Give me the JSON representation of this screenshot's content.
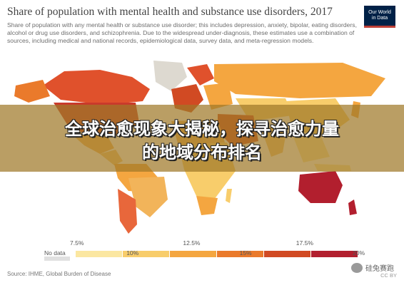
{
  "header": {
    "title": "Share of population with mental health and substance use disorders, 2017",
    "subtitle": "Share of population with any mental health or substance use disorder; this includes depression, anxiety, bipolar, eating disorders, alcohol or drug use disorders, and schizophrenia. Due to the widespread under-diagnosis, these estimates use a combination of sources, including medical and national records, epidemiological data, survey data, and meta-regression models."
  },
  "logo": {
    "line1": "Our World",
    "line2": "in Data"
  },
  "banner": {
    "line1": "全球治愈现象大揭秘，探寻治愈力量",
    "line2": "的地域分布排名"
  },
  "legend": {
    "no_data_label": "No data",
    "ticks": [
      "7.5%",
      "10%",
      "12.5%",
      "15%",
      "17.5%",
      "20%"
    ],
    "colors": [
      "#fbe7a1",
      "#f8cd6b",
      "#f4a640",
      "#ea7a2b",
      "#d14a23",
      "#b21f2e"
    ]
  },
  "source": "Source: IHME, Global Burden of Disease",
  "license": "CC BY",
  "watermark": "硅兔赛跑"
}
